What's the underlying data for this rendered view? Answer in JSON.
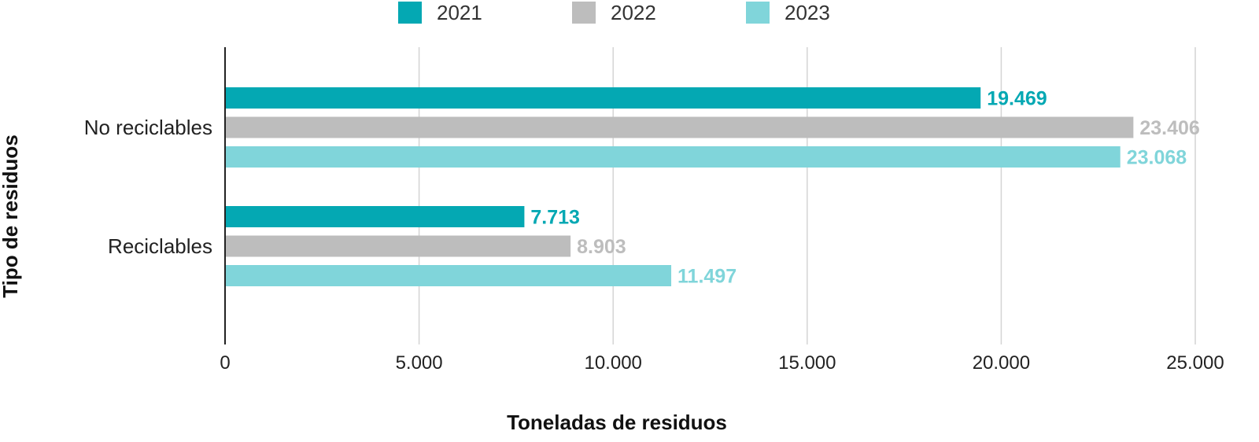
{
  "chart_data": {
    "type": "bar",
    "orientation": "horizontal",
    "categories": [
      "No reciclables",
      "Reciclables"
    ],
    "series": [
      {
        "name": "2021",
        "color": "#04a8b3",
        "values": [
          19469,
          7713
        ],
        "labels": [
          "19.469",
          "7.713"
        ]
      },
      {
        "name": "2022",
        "color": "#bdbdbd",
        "values": [
          23406,
          8903
        ],
        "labels": [
          "23.406",
          "8.903"
        ]
      },
      {
        "name": "2023",
        "color": "#80d5da",
        "values": [
          23068,
          11497
        ],
        "labels": [
          "23.068",
          "11.497"
        ]
      }
    ],
    "xlim": [
      0,
      25000
    ],
    "xticks": [
      0,
      5000,
      10000,
      15000,
      20000,
      25000
    ],
    "xtick_labels": [
      "0",
      "5.000",
      "10.000",
      "15.000",
      "20.000",
      "25.000"
    ],
    "xlabel": "Toneladas de residuos",
    "ylabel": "Tipo de residuos",
    "legend_position": "top-center",
    "grid": "vertical",
    "gridline_color": "#d4d4d4"
  }
}
